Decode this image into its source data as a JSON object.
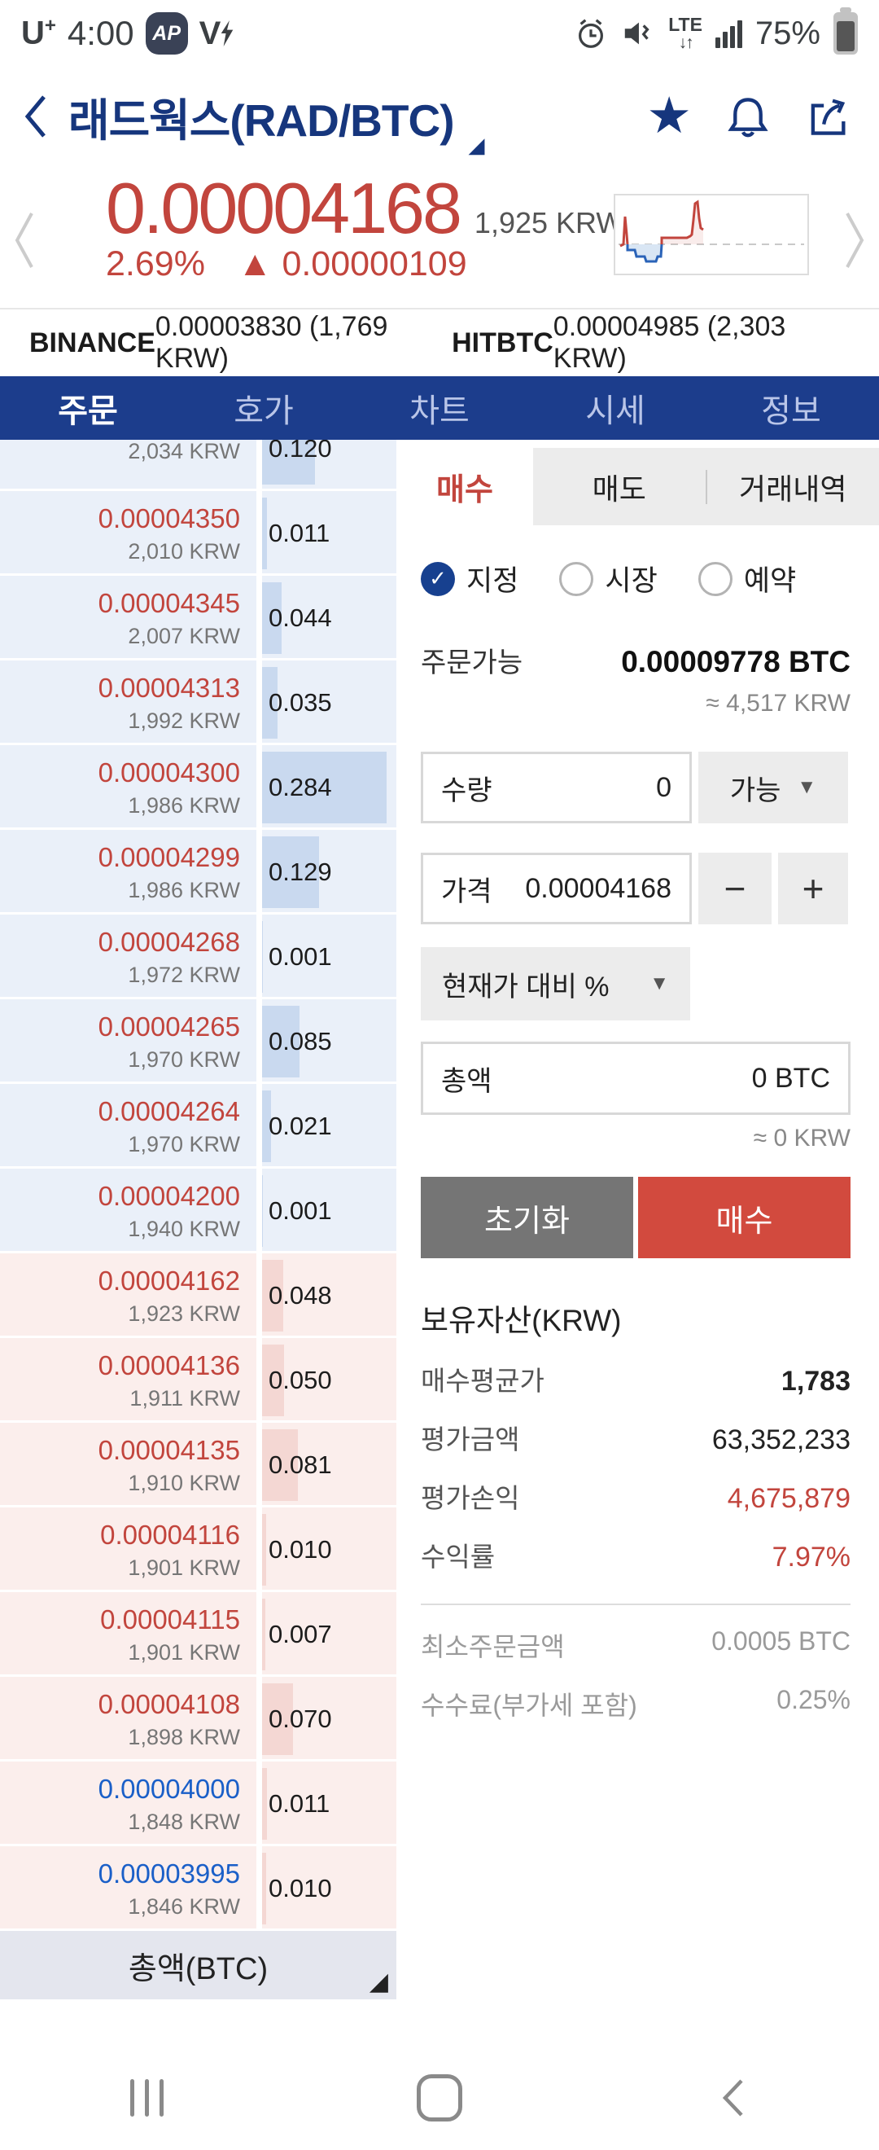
{
  "status_bar": {
    "carrier": "U",
    "carrier_sup": "+",
    "time": "4:00",
    "badge": "AP",
    "volte": "V",
    "battery_percent": "75%"
  },
  "header": {
    "title": "래드웍스(RAD/BTC)",
    "title_caret": "◢"
  },
  "price_section": {
    "price": "0.00004168",
    "krw": "1,925 KRW",
    "change_percent": "2.69%",
    "change": "▲ 0.00000109"
  },
  "exchange_bar": {
    "items": [
      {
        "name": "BINANCE",
        "value": "0.00003830 (1,769 KRW)"
      },
      {
        "name": "HITBTC",
        "value": "0.00004985 (2,303 KRW)"
      }
    ]
  },
  "nav_tabs": {
    "items": [
      "주문",
      "호가",
      "차트",
      "시세",
      "정보"
    ],
    "active_index": 0
  },
  "orderbook": {
    "footer_label": "총액(BTC)",
    "footer_caret": "◢",
    "rows": [
      {
        "price": "",
        "krw": "2,034 KRW",
        "qty": "0.120",
        "side": "ask",
        "trend": "up",
        "partial": true
      },
      {
        "price": "0.00004350",
        "krw": "2,010 KRW",
        "qty": "0.011",
        "side": "ask",
        "trend": "up"
      },
      {
        "price": "0.00004345",
        "krw": "2,007 KRW",
        "qty": "0.044",
        "side": "ask",
        "trend": "up"
      },
      {
        "price": "0.00004313",
        "krw": "1,992 KRW",
        "qty": "0.035",
        "side": "ask",
        "trend": "up"
      },
      {
        "price": "0.00004300",
        "krw": "1,986 KRW",
        "qty": "0.284",
        "side": "ask",
        "trend": "up"
      },
      {
        "price": "0.00004299",
        "krw": "1,986 KRW",
        "qty": "0.129",
        "side": "ask",
        "trend": "up"
      },
      {
        "price": "0.00004268",
        "krw": "1,972 KRW",
        "qty": "0.001",
        "side": "ask",
        "trend": "up"
      },
      {
        "price": "0.00004265",
        "krw": "1,970 KRW",
        "qty": "0.085",
        "side": "ask",
        "trend": "up"
      },
      {
        "price": "0.00004264",
        "krw": "1,970 KRW",
        "qty": "0.021",
        "side": "ask",
        "trend": "up"
      },
      {
        "price": "0.00004200",
        "krw": "1,940 KRW",
        "qty": "0.001",
        "side": "ask",
        "trend": "up"
      },
      {
        "price": "0.00004162",
        "krw": "1,923 KRW",
        "qty": "0.048",
        "side": "bid",
        "trend": "up"
      },
      {
        "price": "0.00004136",
        "krw": "1,911 KRW",
        "qty": "0.050",
        "side": "bid",
        "trend": "up"
      },
      {
        "price": "0.00004135",
        "krw": "1,910 KRW",
        "qty": "0.081",
        "side": "bid",
        "trend": "up"
      },
      {
        "price": "0.00004116",
        "krw": "1,901 KRW",
        "qty": "0.010",
        "side": "bid",
        "trend": "up"
      },
      {
        "price": "0.00004115",
        "krw": "1,901 KRW",
        "qty": "0.007",
        "side": "bid",
        "trend": "up"
      },
      {
        "price": "0.00004108",
        "krw": "1,898 KRW",
        "qty": "0.070",
        "side": "bid",
        "trend": "up"
      },
      {
        "price": "0.00004000",
        "krw": "1,848 KRW",
        "qty": "0.011",
        "side": "bid",
        "trend": "down"
      },
      {
        "price": "0.00003995",
        "krw": "1,846 KRW",
        "qty": "0.010",
        "side": "bid",
        "trend": "down"
      }
    ]
  },
  "trade_panel": {
    "tabs": [
      {
        "label": "매수"
      },
      {
        "label": "매도"
      },
      {
        "label": "거래내역"
      }
    ],
    "order_types": [
      {
        "label": "지정",
        "checked": true
      },
      {
        "label": "시장",
        "checked": false
      },
      {
        "label": "예약",
        "checked": false
      }
    ],
    "available_label": "주문가능",
    "available_value": "0.00009778 BTC",
    "available_approx": "≈ 4,517 KRW",
    "quantity_label": "수량",
    "quantity_value": "0",
    "quantity_unit": "가능",
    "price_label": "가격",
    "price_value": "0.00004168",
    "minus": "−",
    "plus": "+",
    "adjust_dropdown": "현재가 대비 %",
    "total_label": "총액",
    "total_value": "0 BTC",
    "total_approx": "≈ 0 KRW",
    "reset_button": "초기화",
    "buy_button": "매수",
    "holdings_title": "보유자산(KRW)",
    "holdings": [
      {
        "label": "매수평균가",
        "value": "1,783"
      },
      {
        "label": "평가금액",
        "value": "63,352,233"
      },
      {
        "label": "평가손익",
        "value": "4,675,879"
      },
      {
        "label": "수익률",
        "value": "7.97%"
      }
    ],
    "fees": [
      {
        "label": "최소주문금액",
        "value": "0.0005 BTC"
      },
      {
        "label": "수수료(부가세 포함)",
        "value": "0.25%"
      }
    ]
  },
  "colors": {
    "navy": "#16367d",
    "tab_bar_bg": "#1c3d8c",
    "up_red": "#c2453d",
    "down_blue": "#1a5fc8",
    "ask_row_bg": "#eaf0f9",
    "bid_row_bg": "#fbeeec",
    "ask_bar": "#c9d9ef",
    "bid_bar": "#f4d7d3",
    "buy_button_bg": "#d24a3e",
    "reset_button_bg": "#757575",
    "radio_on": "#17408f"
  }
}
